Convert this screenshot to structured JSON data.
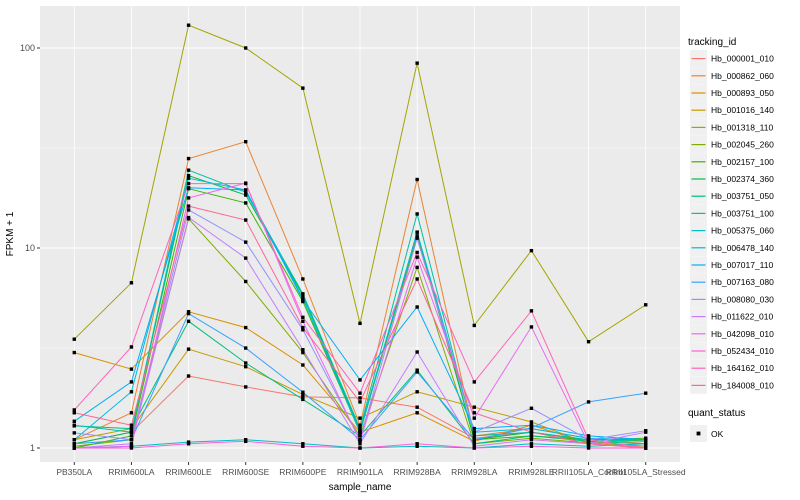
{
  "chart_data": {
    "type": "line",
    "title": "",
    "xlabel": "sample_name",
    "ylabel": "FPKM + 1",
    "y_scale": "log10",
    "ylim": [
      0.85,
      160
    ],
    "y_ticks": [
      1,
      10,
      100
    ],
    "y_tick_labels": [
      "1",
      "10",
      "100"
    ],
    "y_minor": [
      3.1623,
      31.623
    ],
    "grid": true,
    "legend_position": "right",
    "panel_bg": "#EBEBEB",
    "grid_color": "#FFFFFF",
    "point_color": "#000000",
    "axis_text_color": "#4D4D4D",
    "legend_key_bg": "#F0F0F0",
    "categories": [
      "PB350LA",
      "RRIM600LA",
      "RRIM600LE",
      "RRIM600SE",
      "RRIM600PE",
      "RRIM901LA",
      "RRIM928BA",
      "RRIM928LA",
      "RRIM928LE",
      "RRII105LA_Control",
      "RRII105LA_Stressed"
    ],
    "legend": {
      "series_title": "tracking_id",
      "shape_title": "quant_status",
      "shape_label": "OK"
    },
    "series": [
      {
        "name": "Hb_000001_010",
        "color": "#F8766D",
        "values": [
          1.05,
          1.2,
          2.29,
          2.02,
          1.8,
          1.78,
          1.6,
          1.12,
          1.2,
          1.08,
          1.02
        ]
      },
      {
        "name": "Hb_000862_060",
        "color": "#EA8331",
        "values": [
          1.1,
          1.5,
          28.0,
          34.0,
          7.0,
          1.3,
          22.0,
          1.15,
          1.25,
          1.12,
          1.05
        ]
      },
      {
        "name": "Hb_000893_050",
        "color": "#D89000",
        "values": [
          3.0,
          2.48,
          4.8,
          4.0,
          2.6,
          1.2,
          1.5,
          1.08,
          1.3,
          1.06,
          1.02
        ]
      },
      {
        "name": "Hb_001016_140",
        "color": "#C49A00",
        "values": [
          1.1,
          1.25,
          3.12,
          2.55,
          1.85,
          1.41,
          1.91,
          1.6,
          1.35,
          1.05,
          1.0
        ]
      },
      {
        "name": "Hb_001318_110",
        "color": "#A3A500",
        "values": [
          3.5,
          6.7,
          130.0,
          100.0,
          63.0,
          4.2,
          84.0,
          4.1,
          9.7,
          3.4,
          5.2
        ]
      },
      {
        "name": "Hb_002045_260",
        "color": "#7CAE00",
        "values": [
          1.02,
          1.1,
          14.0,
          6.8,
          3.0,
          1.15,
          8.0,
          1.05,
          1.12,
          1.06,
          1.1
        ]
      },
      {
        "name": "Hb_002157_100",
        "color": "#39B600",
        "values": [
          1.0,
          1.15,
          19.8,
          16.8,
          5.4,
          1.2,
          11.5,
          1.1,
          1.15,
          1.1,
          1.12
        ]
      },
      {
        "name": "Hb_002374_360",
        "color": "#00BB4E",
        "values": [
          1.05,
          1.2,
          23.0,
          18.4,
          5.8,
          1.22,
          12.0,
          1.1,
          1.2,
          1.1,
          1.1
        ]
      },
      {
        "name": "Hb_003751_050",
        "color": "#00BF7D",
        "values": [
          1.29,
          1.25,
          4.3,
          2.66,
          1.75,
          1.15,
          2.45,
          1.05,
          1.15,
          1.08,
          1.05
        ]
      },
      {
        "name": "Hb_003751_100",
        "color": "#00C1A3",
        "values": [
          1.3,
          1.2,
          24.5,
          19.0,
          5.9,
          1.25,
          14.8,
          1.15,
          1.2,
          1.1,
          1.08
        ]
      },
      {
        "name": "Hb_005375_060",
        "color": "#00BFC4",
        "values": [
          1.0,
          1.02,
          1.07,
          1.1,
          1.05,
          1.0,
          1.02,
          1.0,
          1.05,
          1.02,
          1.05
        ]
      },
      {
        "name": "Hb_006478_140",
        "color": "#00BAE0",
        "values": [
          1.1,
          1.91,
          22.3,
          19.5,
          5.6,
          1.2,
          12.0,
          1.2,
          1.25,
          1.12,
          1.1
        ]
      },
      {
        "name": "Hb_007017_110",
        "color": "#00B0F6",
        "values": [
          1.36,
          2.14,
          20.0,
          19.5,
          5.5,
          2.19,
          5.07,
          1.25,
          1.3,
          1.15,
          1.1
        ]
      },
      {
        "name": "Hb_007163_080",
        "color": "#35A2FF",
        "values": [
          1.05,
          1.1,
          4.7,
          3.16,
          1.9,
          1.1,
          2.4,
          1.1,
          1.26,
          1.7,
          1.88
        ]
      },
      {
        "name": "Hb_008080_030",
        "color": "#9590FF",
        "values": [
          1.19,
          1.1,
          15.5,
          10.7,
          3.9,
          1.1,
          11.2,
          1.2,
          1.58,
          1.1,
          1.22
        ]
      },
      {
        "name": "Hb_011622_010",
        "color": "#C77CFF",
        "values": [
          1.0,
          1.05,
          14.2,
          8.9,
          3.1,
          1.05,
          3.02,
          1.02,
          1.1,
          1.05,
          1.2
        ]
      },
      {
        "name": "Hb_042098_010",
        "color": "#E76BF3",
        "values": [
          1.0,
          1.02,
          17.8,
          21.1,
          4.3,
          1.08,
          9.0,
          1.41,
          4.03,
          1.05,
          1.0
        ]
      },
      {
        "name": "Hb_052434_010",
        "color": "#FA62DB",
        "values": [
          1.0,
          1.0,
          1.05,
          1.08,
          1.02,
          1.0,
          1.05,
          1.0,
          1.02,
          1.0,
          1.0
        ]
      },
      {
        "name": "Hb_164162_010",
        "color": "#FF62BC",
        "values": [
          1.55,
          3.2,
          21.0,
          21.0,
          4.5,
          1.88,
          9.5,
          2.14,
          4.85,
          1.1,
          1.0
        ]
      },
      {
        "name": "Hb_184008_010",
        "color": "#FF6598",
        "values": [
          1.5,
          1.3,
          16.2,
          13.8,
          4.0,
          1.7,
          7.0,
          1.5,
          1.2,
          1.05,
          1.0
        ]
      }
    ]
  }
}
